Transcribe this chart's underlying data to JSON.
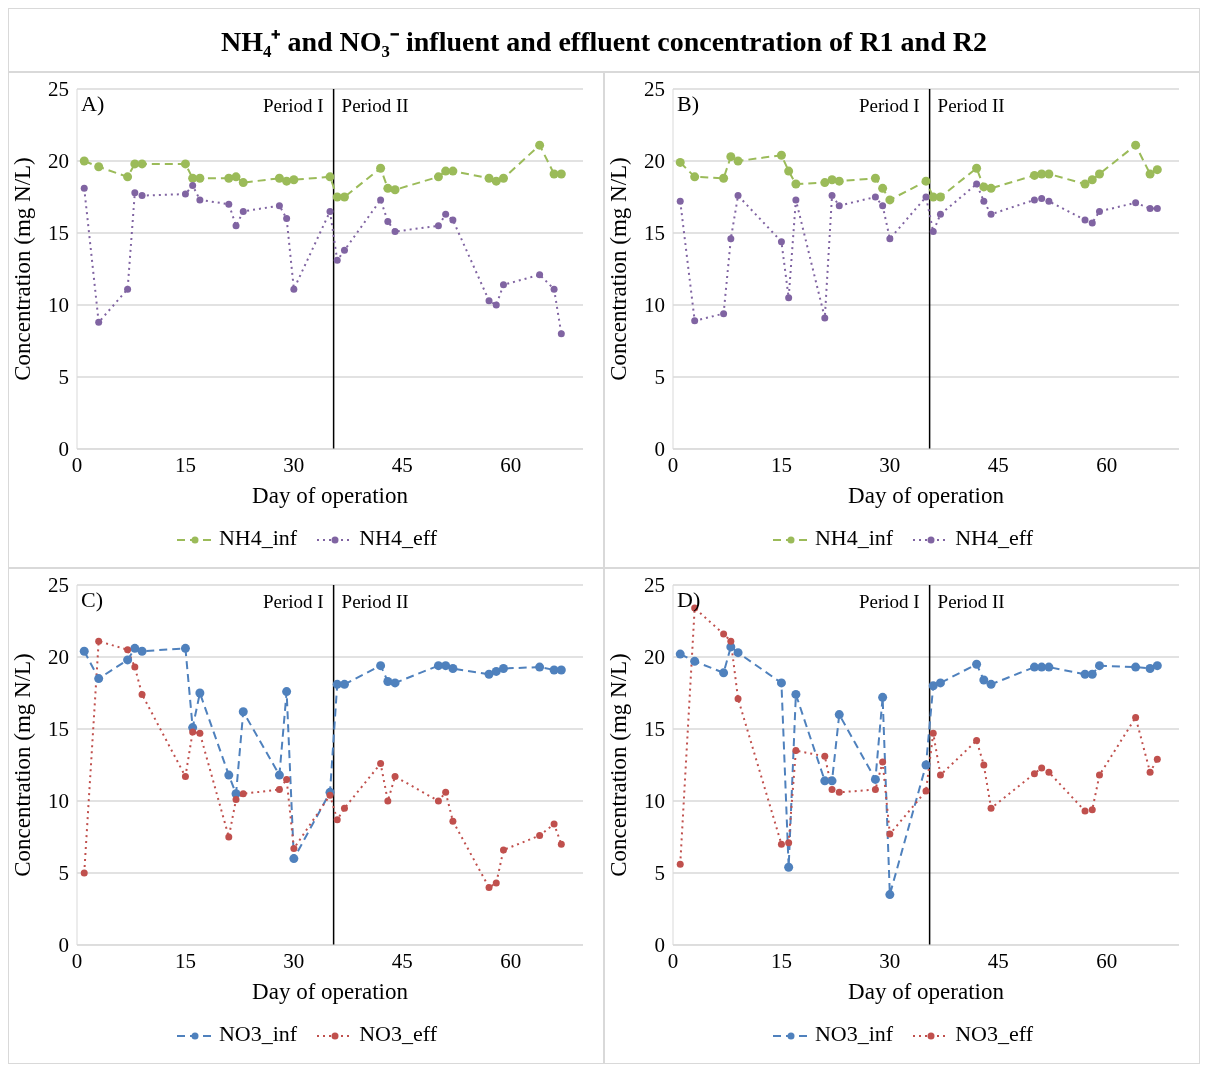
{
  "chart_data": [
    {
      "type": "line",
      "title": "NH₄⁺ and NO₃⁻ influent and effluent concentration of R1 and R2",
      "xlabel": "Day of operation",
      "ylabel": "Concentration (mg N/L)",
      "annotations": [
        "A)",
        "Period I",
        "Period II"
      ],
      "x": [
        1,
        3,
        7,
        8,
        9,
        15,
        16,
        17,
        21,
        22,
        23,
        28,
        29,
        30,
        35,
        36,
        37,
        42,
        43,
        44,
        50,
        51,
        52,
        57,
        58,
        59,
        64,
        66,
        67
      ],
      "series": [
        {
          "name": "NH4_inf",
          "color": "#9bbb59",
          "line_style": "dashed",
          "values": [
            20.0,
            19.6,
            18.9,
            19.8,
            19.8,
            19.8,
            18.8,
            18.8,
            18.8,
            18.9,
            18.5,
            18.8,
            18.6,
            18.7,
            18.9,
            17.5,
            17.5,
            19.5,
            18.1,
            18.0,
            18.9,
            19.3,
            19.3,
            18.8,
            18.6,
            18.8,
            21.1,
            19.1,
            19.1
          ]
        },
        {
          "name": "NH4_eff",
          "color": "#8064a2",
          "line_style": "dotted",
          "values": [
            18.1,
            8.8,
            11.1,
            17.8,
            17.6,
            17.7,
            18.3,
            17.3,
            17.0,
            15.5,
            16.5,
            16.9,
            16.0,
            11.1,
            16.5,
            13.1,
            13.8,
            17.3,
            15.8,
            15.1,
            15.5,
            16.3,
            15.9,
            10.3,
            10.0,
            11.4,
            12.1,
            11.1,
            8.0
          ]
        }
      ],
      "ref_lines": [
        {
          "axis": "x",
          "value": 35.5,
          "color": "#000000"
        }
      ],
      "xlim": [
        0,
        70
      ],
      "xticks": [
        0,
        15,
        30,
        45,
        60
      ],
      "ylim": [
        0,
        25
      ],
      "yticks": [
        0,
        5,
        10,
        15,
        20,
        25
      ],
      "grid": "y",
      "legend": "bottom",
      "marker": "circle"
    },
    {
      "type": "line",
      "xlabel": "Day of operation",
      "ylabel": "Concentration (mg N/L)",
      "annotations": [
        "B)",
        "Period I",
        "Period II"
      ],
      "x": [
        1,
        3,
        7,
        8,
        9,
        15,
        16,
        17,
        21,
        22,
        23,
        28,
        29,
        30,
        35,
        36,
        37,
        42,
        43,
        44,
        50,
        51,
        52,
        57,
        58,
        59,
        64,
        66,
        67
      ],
      "series": [
        {
          "name": "NH4_inf",
          "color": "#9bbb59",
          "line_style": "dashed",
          "values": [
            19.9,
            18.9,
            18.8,
            20.3,
            20.0,
            20.4,
            19.3,
            18.4,
            18.5,
            18.7,
            18.6,
            18.8,
            18.1,
            17.3,
            18.6,
            17.5,
            17.5,
            19.5,
            18.2,
            18.1,
            19.0,
            19.1,
            19.1,
            18.4,
            18.7,
            19.1,
            21.1,
            19.1,
            19.4
          ]
        },
        {
          "name": "NH4_eff",
          "color": "#8064a2",
          "line_style": "dotted",
          "values": [
            17.2,
            8.9,
            9.4,
            14.6,
            17.6,
            14.4,
            10.5,
            17.3,
            9.1,
            17.6,
            16.9,
            17.5,
            16.9,
            14.6,
            17.5,
            15.1,
            16.3,
            18.4,
            17.2,
            16.3,
            17.3,
            17.4,
            17.2,
            15.9,
            15.7,
            16.5,
            17.1,
            16.7,
            16.7
          ]
        }
      ],
      "ref_lines": [
        {
          "axis": "x",
          "value": 35.5,
          "color": "#000000"
        }
      ],
      "xlim": [
        0,
        70
      ],
      "xticks": [
        0,
        15,
        30,
        45,
        60
      ],
      "ylim": [
        0,
        25
      ],
      "yticks": [
        0,
        5,
        10,
        15,
        20,
        25
      ],
      "grid": "y",
      "legend": "bottom",
      "marker": "circle"
    },
    {
      "type": "line",
      "xlabel": "Day of operation",
      "ylabel": "Concentration (mg N/L)",
      "annotations": [
        "C)",
        "Period I",
        "Period II"
      ],
      "x": [
        1,
        3,
        7,
        8,
        9,
        15,
        16,
        17,
        21,
        22,
        23,
        28,
        29,
        30,
        35,
        36,
        37,
        42,
        43,
        44,
        50,
        51,
        52,
        57,
        58,
        59,
        64,
        66,
        67
      ],
      "series": [
        {
          "name": "NO3_inf",
          "color": "#4f81bd",
          "line_style": "dashed",
          "values": [
            20.4,
            18.5,
            19.8,
            20.6,
            20.4,
            20.6,
            15.1,
            17.5,
            11.8,
            10.5,
            16.2,
            11.8,
            17.6,
            6.0,
            10.6,
            18.1,
            18.1,
            19.4,
            18.3,
            18.2,
            19.4,
            19.4,
            19.2,
            18.8,
            19.0,
            19.2,
            19.3,
            19.1,
            19.1
          ]
        },
        {
          "name": "NO3_eff",
          "color": "#c0504d",
          "line_style": "dotted",
          "values": [
            5.0,
            21.1,
            20.5,
            19.3,
            17.4,
            11.7,
            14.8,
            14.7,
            7.5,
            10.1,
            10.5,
            10.8,
            11.5,
            6.7,
            10.4,
            8.7,
            9.5,
            12.6,
            10.0,
            11.7,
            10.0,
            10.6,
            8.6,
            4.0,
            4.3,
            6.6,
            7.6,
            8.4,
            7.0
          ]
        }
      ],
      "ref_lines": [
        {
          "axis": "x",
          "value": 35.5,
          "color": "#000000"
        }
      ],
      "xlim": [
        0,
        70
      ],
      "xticks": [
        0,
        15,
        30,
        45,
        60
      ],
      "ylim": [
        0,
        25
      ],
      "yticks": [
        0,
        5,
        10,
        15,
        20,
        25
      ],
      "grid": "y",
      "legend": "bottom",
      "marker": "circle"
    },
    {
      "type": "line",
      "xlabel": "Day of operation",
      "ylabel": "Concentration (mg N/L)",
      "annotations": [
        "D)",
        "Period I",
        "Period II"
      ],
      "x": [
        1,
        3,
        7,
        8,
        9,
        15,
        16,
        17,
        21,
        22,
        23,
        28,
        29,
        30,
        35,
        36,
        37,
        42,
        43,
        44,
        50,
        51,
        52,
        57,
        58,
        59,
        64,
        66,
        67
      ],
      "series": [
        {
          "name": "NO3_inf",
          "color": "#4f81bd",
          "line_style": "dashed",
          "values": [
            20.2,
            19.7,
            18.9,
            20.7,
            20.3,
            18.2,
            5.4,
            17.4,
            11.4,
            11.4,
            16.0,
            11.5,
            17.2,
            3.5,
            12.5,
            18.0,
            18.2,
            19.5,
            18.4,
            18.1,
            19.3,
            19.3,
            19.3,
            18.8,
            18.8,
            19.4,
            19.3,
            19.2,
            19.4
          ]
        },
        {
          "name": "NO3_eff",
          "color": "#c0504d",
          "line_style": "dotted",
          "values": [
            5.6,
            23.4,
            21.6,
            21.1,
            17.1,
            7.0,
            7.1,
            13.5,
            13.1,
            10.8,
            10.6,
            10.8,
            12.7,
            7.7,
            10.7,
            14.7,
            11.8,
            14.2,
            12.5,
            9.5,
            11.9,
            12.3,
            12.0,
            9.3,
            9.4,
            11.8,
            15.8,
            12.0,
            12.9
          ]
        }
      ],
      "ref_lines": [
        {
          "axis": "x",
          "value": 35.5,
          "color": "#000000"
        }
      ],
      "xlim": [
        0,
        70
      ],
      "xticks": [
        0,
        15,
        30,
        45,
        60
      ],
      "ylim": [
        0,
        25
      ],
      "yticks": [
        0,
        5,
        10,
        15,
        20,
        25
      ],
      "grid": "y",
      "legend": "bottom",
      "marker": "circle"
    }
  ]
}
